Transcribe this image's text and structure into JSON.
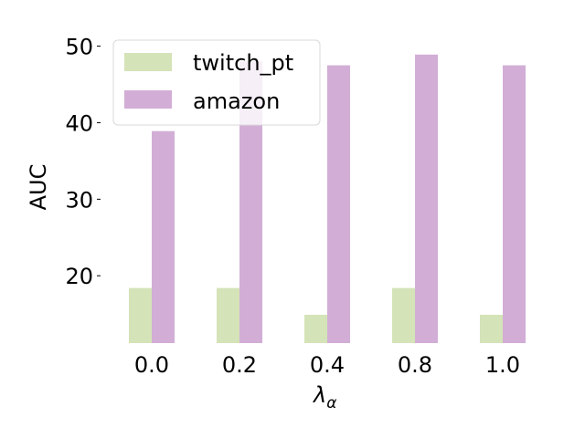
{
  "chart_data": {
    "type": "bar",
    "categories": [
      "0.0",
      "0.2",
      "0.4",
      "0.8",
      "1.0"
    ],
    "series": [
      {
        "name": "twitch_pt",
        "values": [
          18.4,
          18.4,
          14.9,
          18.4,
          14.9
        ],
        "color": "#d5e3b8"
      },
      {
        "name": "amazon",
        "values": [
          38.9,
          48.0,
          47.5,
          48.9,
          47.5
        ],
        "color": "#d2aed6"
      }
    ],
    "ylabel": "AUC",
    "xlabel_main": "λ",
    "xlabel_sub": "α",
    "ylim": [
      11.2,
      51.5
    ],
    "yticks": [
      20,
      30,
      40,
      50
    ],
    "grid": false,
    "legend_position": "top-left"
  }
}
